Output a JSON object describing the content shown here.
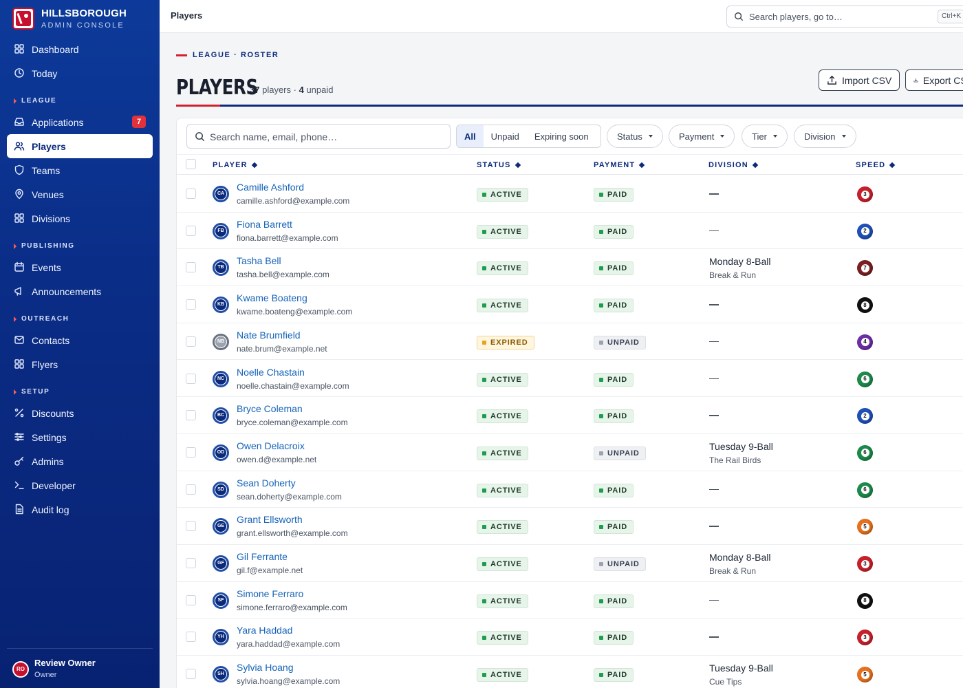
{
  "brand": {
    "title": "HILLSBOROUGH",
    "subtitle": "ADMIN CONSOLE"
  },
  "sidebar": {
    "items": [
      {
        "label": "Dashboard",
        "icon": "grid-icon"
      },
      {
        "label": "Today",
        "icon": "clock-icon"
      },
      {
        "section": "LEAGUE"
      },
      {
        "label": "Applications",
        "icon": "inbox-icon",
        "badge": "7"
      },
      {
        "label": "Players",
        "icon": "users-icon",
        "active": true
      },
      {
        "label": "Teams",
        "icon": "shield-icon"
      },
      {
        "label": "Venues",
        "icon": "map-pin-icon"
      },
      {
        "label": "Divisions",
        "icon": "grid-icon"
      },
      {
        "section": "PUBLISHING"
      },
      {
        "label": "Events",
        "icon": "calendar-icon"
      },
      {
        "label": "Announcements",
        "icon": "megaphone-icon"
      },
      {
        "section": "OUTREACH"
      },
      {
        "label": "Contacts",
        "icon": "mail-icon"
      },
      {
        "label": "Flyers",
        "icon": "grid-icon"
      },
      {
        "section": "SETUP"
      },
      {
        "label": "Discounts",
        "icon": "percent-icon"
      },
      {
        "label": "Settings",
        "icon": "sliders-icon"
      },
      {
        "label": "Admins",
        "icon": "key-icon"
      },
      {
        "label": "Developer",
        "icon": "terminal-icon"
      },
      {
        "label": "Audit log",
        "icon": "file-icon"
      }
    ],
    "footer": {
      "initials": "RO",
      "name": "Review Owner",
      "role": "Owner"
    }
  },
  "topbar": {
    "title": "Players",
    "search_placeholder": "Search players, go to…",
    "shortcut": "Ctrl+K"
  },
  "header": {
    "eyebrow": "LEAGUE · ROSTER",
    "title": "PLAYERS",
    "count": "37",
    "count_label": "players ·",
    "unpaid": "4",
    "unpaid_label": "unpaid",
    "import_label": "Import CSV",
    "export_label": "Export CSV"
  },
  "filters": {
    "search_placeholder": "Search name, email, phone…",
    "segments": [
      "All",
      "Unpaid",
      "Expiring soon"
    ],
    "active_segment": "All",
    "dropdowns": [
      "Status",
      "Payment",
      "Tier",
      "Division"
    ]
  },
  "columns": [
    "PLAYER",
    "STATUS",
    "PAYMENT",
    "DIVISION",
    "SPEED"
  ],
  "ball_colors": {
    "2": "#1f4fb8",
    "3": "#c8202a",
    "4": "#6b2fa6",
    "5": "#e6711c",
    "6": "#1b8a4a",
    "7": "#7a2020",
    "8": "#111111"
  },
  "players": [
    {
      "initials": "CA",
      "name": "Camille Ashford",
      "email": "camille.ashford@example.com",
      "status": "ACTIVE",
      "payment": "PAID",
      "division": "",
      "team": "",
      "speed": "3"
    },
    {
      "initials": "FB",
      "name": "Fiona Barrett",
      "email": "fiona.barrett@example.com",
      "status": "ACTIVE",
      "payment": "PAID",
      "division": "",
      "team": "",
      "speed": "2"
    },
    {
      "initials": "TB",
      "name": "Tasha Bell",
      "email": "tasha.bell@example.com",
      "status": "ACTIVE",
      "payment": "PAID",
      "division": "Monday 8-Ball",
      "team": "Break & Run",
      "speed": "7"
    },
    {
      "initials": "KB",
      "name": "Kwame Boateng",
      "email": "kwame.boateng@example.com",
      "status": "ACTIVE",
      "payment": "PAID",
      "division": "",
      "team": "",
      "speed": "8"
    },
    {
      "initials": "NB",
      "name": "Nate Brumfield",
      "email": "nate.brum@example.net",
      "status": "EXPIRED",
      "payment": "UNPAID",
      "division": "",
      "team": "",
      "speed": "4"
    },
    {
      "initials": "NC",
      "name": "Noelle Chastain",
      "email": "noelle.chastain@example.com",
      "status": "ACTIVE",
      "payment": "PAID",
      "division": "",
      "team": "",
      "speed": "6"
    },
    {
      "initials": "BC",
      "name": "Bryce Coleman",
      "email": "bryce.coleman@example.com",
      "status": "ACTIVE",
      "payment": "PAID",
      "division": "",
      "team": "",
      "speed": "2"
    },
    {
      "initials": "OD",
      "name": "Owen Delacroix",
      "email": "owen.d@example.net",
      "status": "ACTIVE",
      "payment": "UNPAID",
      "division": "Tuesday 9-Ball",
      "team": "The Rail Birds",
      "speed": "6"
    },
    {
      "initials": "SD",
      "name": "Sean Doherty",
      "email": "sean.doherty@example.com",
      "status": "ACTIVE",
      "payment": "PAID",
      "division": "",
      "team": "",
      "speed": "6"
    },
    {
      "initials": "GE",
      "name": "Grant Ellsworth",
      "email": "grant.ellsworth@example.com",
      "status": "ACTIVE",
      "payment": "PAID",
      "division": "",
      "team": "",
      "speed": "5"
    },
    {
      "initials": "GF",
      "name": "Gil Ferrante",
      "email": "gil.f@example.net",
      "status": "ACTIVE",
      "payment": "UNPAID",
      "division": "Monday 8-Ball",
      "team": "Break & Run",
      "speed": "3"
    },
    {
      "initials": "SF",
      "name": "Simone Ferraro",
      "email": "simone.ferraro@example.com",
      "status": "ACTIVE",
      "payment": "PAID",
      "division": "",
      "team": "",
      "speed": "8"
    },
    {
      "initials": "YH",
      "name": "Yara Haddad",
      "email": "yara.haddad@example.com",
      "status": "ACTIVE",
      "payment": "PAID",
      "division": "",
      "team": "",
      "speed": "3"
    },
    {
      "initials": "SH",
      "name": "Sylvia Hoang",
      "email": "sylvia.hoang@example.com",
      "status": "ACTIVE",
      "payment": "PAID",
      "division": "Tuesday 9-Ball",
      "team": "Cue Tips",
      "speed": "5"
    }
  ]
}
